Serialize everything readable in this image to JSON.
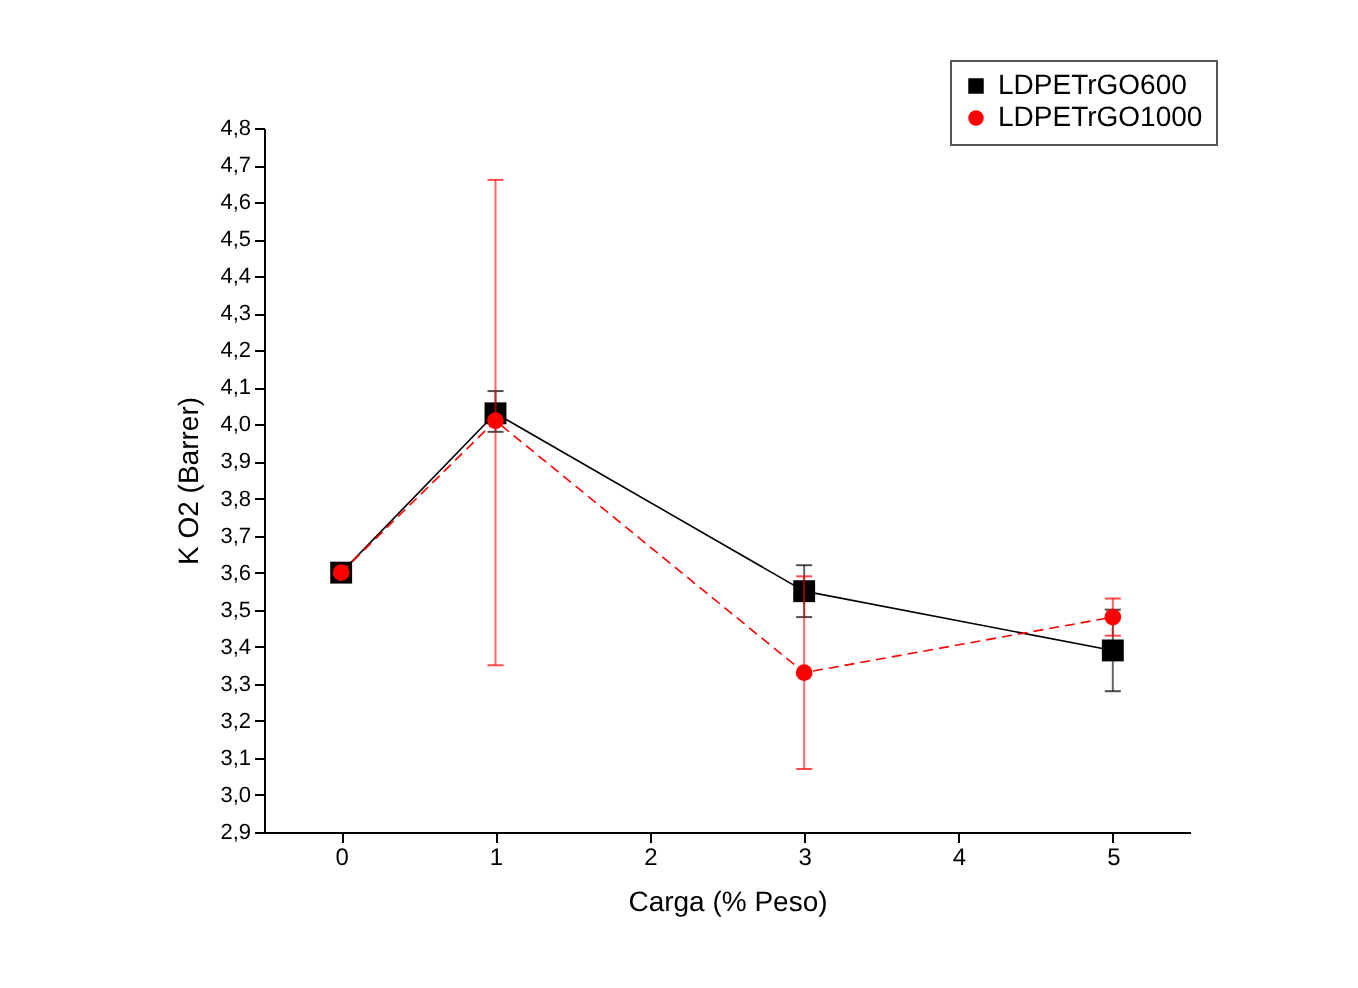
{
  "chart_data": {
    "type": "line",
    "xlabel": "Carga (% Peso)",
    "ylabel": "K O2 (Barrer)",
    "x": [
      0,
      1,
      3,
      5
    ],
    "series": [
      {
        "name": "LDPETrGO600",
        "color": "#000000",
        "marker": "square",
        "line_style": "solid",
        "values": [
          3.6,
          4.03,
          3.55,
          3.39
        ],
        "errors": [
          null,
          [
            3.98,
            4.09
          ],
          [
            3.48,
            3.62
          ],
          [
            3.28,
            3.5
          ]
        ]
      },
      {
        "name": "LDPETrGO1000",
        "color": "#ff0000",
        "marker": "circle",
        "line_style": "dashed",
        "values": [
          3.6,
          4.01,
          3.33,
          3.48
        ],
        "errors": [
          null,
          [
            3.35,
            4.66
          ],
          [
            3.07,
            3.59
          ],
          [
            3.43,
            3.53
          ]
        ]
      }
    ],
    "xlim": [
      -0.5,
      5.5
    ],
    "xticks": [
      0,
      1,
      2,
      3,
      4,
      5
    ],
    "ylim": [
      2.9,
      4.8
    ],
    "yticks": [
      {
        "value": 2.9,
        "label": "2,9"
      },
      {
        "value": 3.0,
        "label": "3,0"
      },
      {
        "value": 3.1,
        "label": "3,1"
      },
      {
        "value": 3.2,
        "label": "3,2"
      },
      {
        "value": 3.3,
        "label": "3,3"
      },
      {
        "value": 3.4,
        "label": "3,4"
      },
      {
        "value": 3.5,
        "label": "3,5"
      },
      {
        "value": 3.6,
        "label": "3,6"
      },
      {
        "value": 3.7,
        "label": "3,7"
      },
      {
        "value": 3.8,
        "label": "3,8"
      },
      {
        "value": 3.9,
        "label": "3,9"
      },
      {
        "value": 4.0,
        "label": "4,0"
      },
      {
        "value": 4.1,
        "label": "4,1"
      },
      {
        "value": 4.2,
        "label": "4,2"
      },
      {
        "value": 4.3,
        "label": "4,3"
      },
      {
        "value": 4.4,
        "label": "4,4"
      },
      {
        "value": 4.5,
        "label": "4,5"
      },
      {
        "value": 4.6,
        "label": "4,6"
      },
      {
        "value": 4.7,
        "label": "4,7"
      },
      {
        "value": 4.8,
        "label": "4,8"
      }
    ],
    "grid": false,
    "legend": "top right"
  }
}
